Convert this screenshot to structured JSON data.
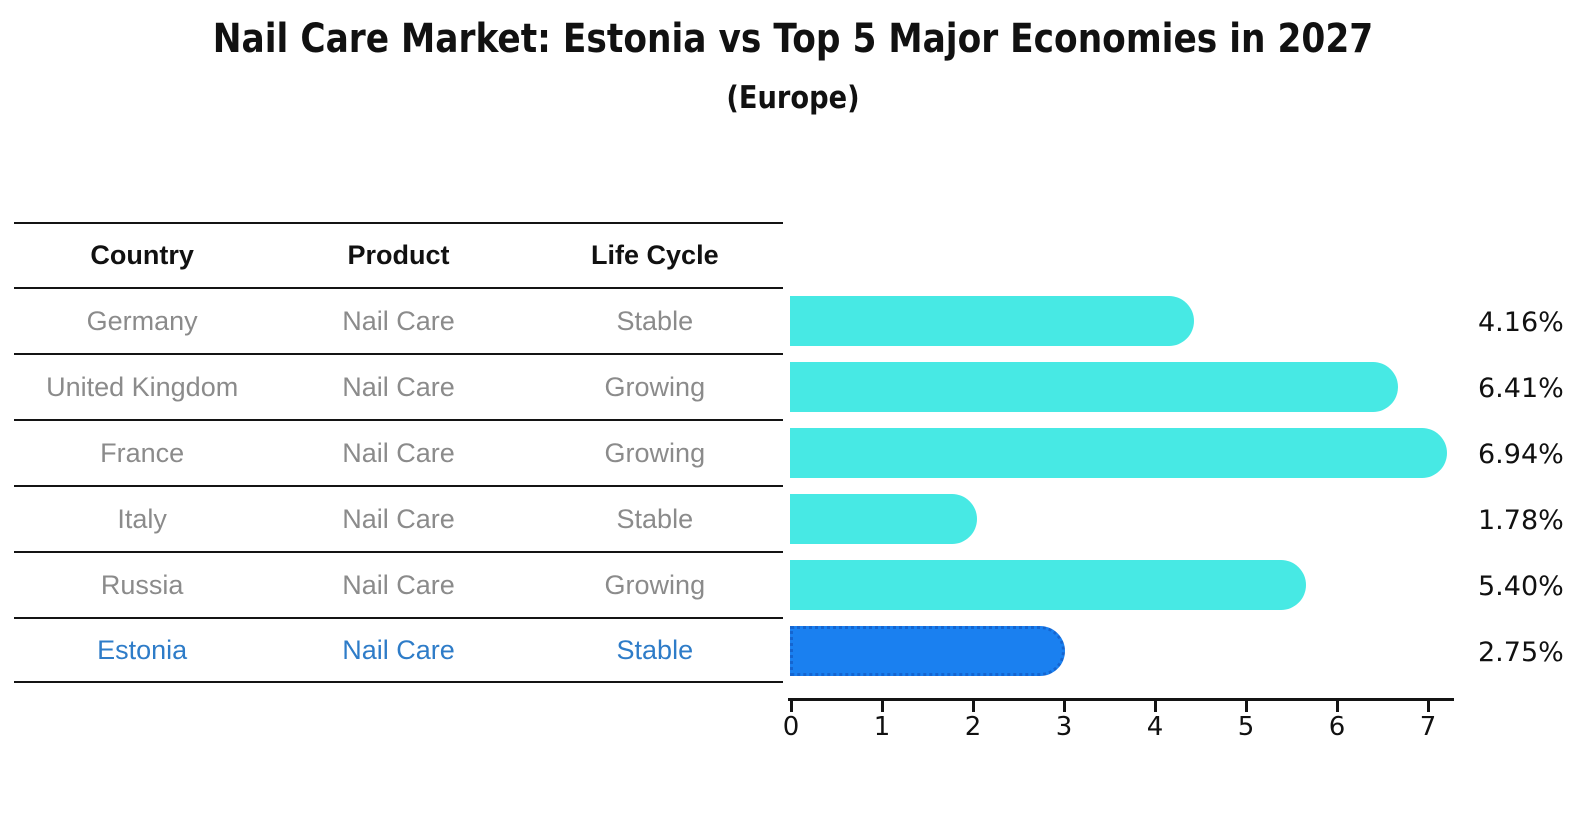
{
  "title": "Nail Care Market: Estonia vs Top 5 Major Economies in 2027",
  "subtitle": "(Europe)",
  "table": {
    "headers": [
      "Country",
      "Product",
      "Life Cycle"
    ],
    "rows": [
      {
        "country": "Germany",
        "product": "Nail Care",
        "life_cycle": "Stable",
        "highlight": false
      },
      {
        "country": "United Kingdom",
        "product": "Nail Care",
        "life_cycle": "Growing",
        "highlight": false
      },
      {
        "country": "France",
        "product": "Nail Care",
        "life_cycle": "Growing",
        "highlight": false
      },
      {
        "country": "Italy",
        "product": "Nail Care",
        "life_cycle": "Stable",
        "highlight": false
      },
      {
        "country": "Russia",
        "product": "Nail Care",
        "life_cycle": "Growing",
        "highlight": false
      },
      {
        "country": "Estonia",
        "product": "Nail Care",
        "life_cycle": "Stable",
        "highlight": true
      }
    ]
  },
  "chart_data": {
    "type": "bar",
    "orientation": "horizontal",
    "title": "Nail Care Market: Estonia vs Top 5 Major Economies in 2027",
    "subtitle": "(Europe)",
    "categories": [
      "Germany",
      "United Kingdom",
      "France",
      "Italy",
      "Russia",
      "Estonia"
    ],
    "values": [
      4.16,
      6.41,
      6.94,
      1.78,
      5.4,
      2.75
    ],
    "value_labels": [
      "4.16%",
      "6.41%",
      "6.94%",
      "1.78%",
      "5.40%",
      "2.75%"
    ],
    "highlight_index": 5,
    "x_ticks": [
      "0",
      "1",
      "2",
      "3",
      "4",
      "5",
      "6",
      "7"
    ],
    "xlim": [
      0,
      7.3
    ],
    "xlabel": "",
    "ylabel": "",
    "grid": false,
    "legend": "none"
  },
  "colors": {
    "bar": "#47E9E4",
    "highlight_bar": "#1A80F0",
    "highlight_bar_border": "#1565D0",
    "highlight_text": "#2E7CC8",
    "table_text": "#8B8B8B",
    "header_text": "#111111",
    "axis": "#141414"
  }
}
